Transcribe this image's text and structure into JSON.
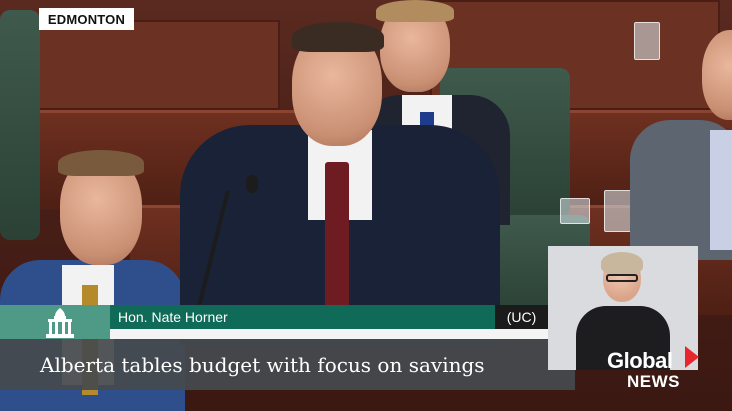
{
  "location_tag": "EDMONTON",
  "lower_third": {
    "speaker_name": "Hon. Nate Horner",
    "party": "(UC)"
  },
  "headline": "Alberta tables budget with focus on savings",
  "logo": {
    "global": "Global",
    "news": "NEWS"
  },
  "colors": {
    "lower_third_green": "#0f6b57",
    "crest_green": "#4f9a86",
    "logo_red": "#e8262d",
    "headline_bg": "#464a4e"
  },
  "icons": [
    "legislature-crest-icon",
    "global-news-arrow-icon"
  ]
}
